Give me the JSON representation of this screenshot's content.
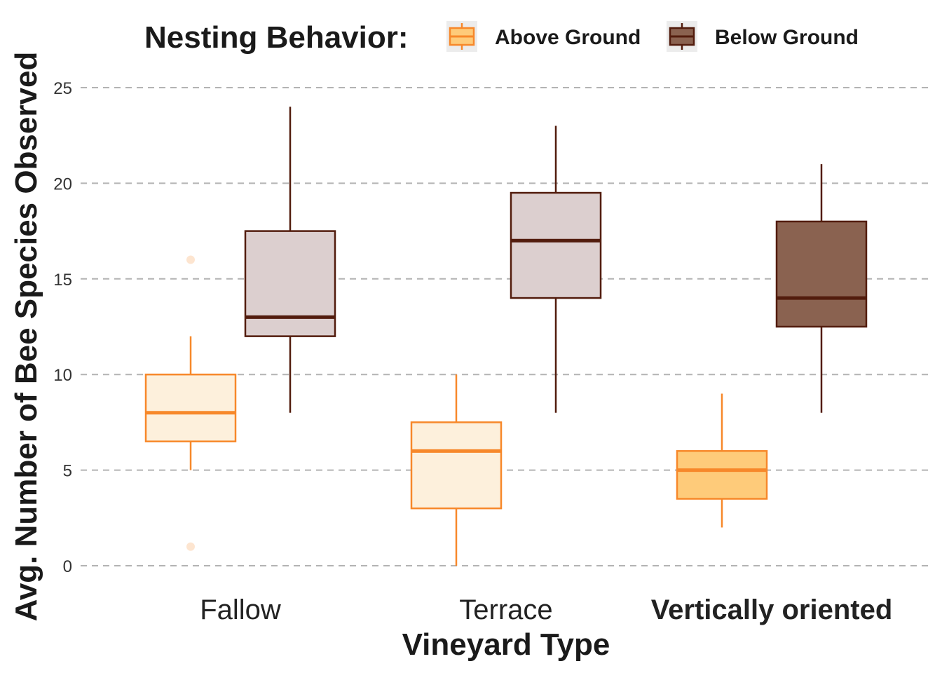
{
  "chart_data": {
    "type": "boxplot",
    "legend": {
      "title": "Nesting Behavior:",
      "position": "top",
      "items": [
        {
          "label": "Above Ground",
          "stroke": "#f7882a",
          "fill": "#fecb7a"
        },
        {
          "label": "Below Ground",
          "stroke": "#521c0d",
          "fill": "#8a6250"
        }
      ]
    },
    "xlabel": "Vineyard Type",
    "ylabel": "Avg. Number of Bee Species Observed",
    "ylim": [
      0,
      25
    ],
    "yticks": [
      "0",
      "5",
      "10",
      "15",
      "20",
      "25"
    ],
    "grid": "horizontal dashed",
    "categories": [
      {
        "label": "Fallow",
        "bold": false
      },
      {
        "label": "Terrace",
        "bold": false
      },
      {
        "label": "Vertically oriented",
        "bold": true
      }
    ],
    "series": [
      {
        "name": "Above Ground",
        "stroke": "#f7882a",
        "boxes": [
          {
            "category": "Fallow",
            "whisker_low": 5,
            "q1": 6.5,
            "median": 8,
            "q3": 10,
            "whisker_high": 12,
            "outliers": [
              1,
              16
            ],
            "fill": "#fdf0dc"
          },
          {
            "category": "Terrace",
            "whisker_low": 0,
            "q1": 3,
            "median": 6,
            "q3": 7.5,
            "whisker_high": 10,
            "outliers": [],
            "fill": "#fdf0dc"
          },
          {
            "category": "Vertically oriented",
            "whisker_low": 2,
            "q1": 3.5,
            "median": 5,
            "q3": 6,
            "whisker_high": 9,
            "outliers": [],
            "fill": "#fecb7a"
          }
        ]
      },
      {
        "name": "Below Ground",
        "stroke": "#521c0d",
        "boxes": [
          {
            "category": "Fallow",
            "whisker_low": 8,
            "q1": 12,
            "median": 13,
            "q3": 17.5,
            "whisker_high": 24,
            "outliers": [],
            "fill": "#dccfcf"
          },
          {
            "category": "Terrace",
            "whisker_low": 8,
            "q1": 14,
            "median": 17,
            "q3": 19.5,
            "whisker_high": 23,
            "outliers": [],
            "fill": "#dccfcf"
          },
          {
            "category": "Vertically oriented",
            "whisker_low": 8,
            "q1": 12.5,
            "median": 14,
            "q3": 18,
            "whisker_high": 21,
            "outliers": [],
            "fill": "#8a6250"
          }
        ]
      }
    ]
  }
}
